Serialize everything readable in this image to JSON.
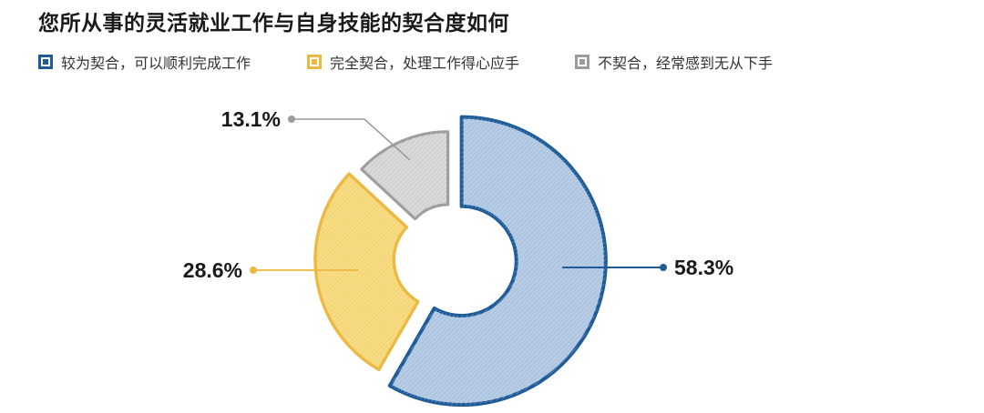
{
  "title": "您所从事的灵活就业工作与自身技能的契合度如何",
  "colors": {
    "background": "#ffffff",
    "title_text": "#1a1a1a",
    "legend_text": "#333333",
    "value_label_text": "#1a1a1a"
  },
  "chart_data": {
    "type": "pie",
    "subtype": "exploded-donut-rose",
    "title": "您所从事的灵活就业工作与自身技能的契合度如何",
    "unit": "%",
    "start_position": "12-oclock",
    "direction": "clockwise",
    "legend_position": "top-left",
    "donut_hole": true,
    "slices": [
      {
        "label": "较为契合，可以顺利完成工作",
        "value": 58.3,
        "value_label": "58.3%",
        "fill": "#b7cce5",
        "stroke": "#1e5b98",
        "hatch": "#93b2d6"
      },
      {
        "label": "完全契合，处理工作得心应手",
        "value": 28.6,
        "value_label": "28.6%",
        "fill": "#f8dc85",
        "stroke": "#ebb841",
        "hatch": "#eac657"
      },
      {
        "label": "不契合，经常感到无从下手",
        "value": 13.1,
        "value_label": "13.1%",
        "fill": "#d9d9d9",
        "stroke": "#9c9c9c",
        "hatch": "#bfbfbf"
      }
    ]
  }
}
